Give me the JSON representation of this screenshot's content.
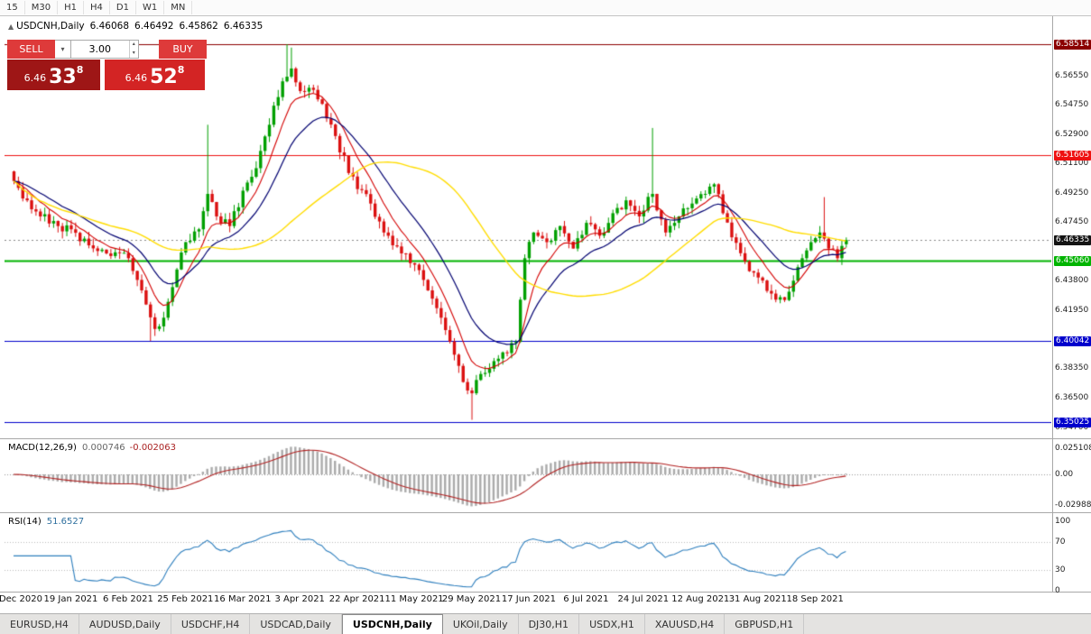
{
  "toolbar": {
    "timeframes": [
      "15",
      "M30",
      "H1",
      "H4",
      "D1",
      "W1",
      "MN"
    ]
  },
  "chart_header": {
    "collapse_icon": "▲",
    "symbol": "USDCNH,Daily",
    "open": "6.46068",
    "high": "6.46492",
    "low": "6.45862",
    "close": "6.46335"
  },
  "trade_panel": {
    "sell_label": "SELL",
    "buy_label": "BUY",
    "volume": "3.00",
    "sell_price": {
      "small": "6.46",
      "big": "33",
      "sup": "8"
    },
    "buy_price": {
      "small": "6.46",
      "big": "52",
      "sup": "8"
    }
  },
  "price_axis": {
    "ticks": [
      "6.56550",
      "6.54750",
      "6.52900",
      "6.51100",
      "6.49250",
      "6.47450",
      "6.43800",
      "6.41950",
      "6.38350",
      "6.36500",
      "6.34700"
    ]
  },
  "levels": [
    {
      "label": "6.58514",
      "value": 6.58514,
      "color": "#8B0000",
      "line_width": 1
    },
    {
      "label": "6.51605",
      "value": 6.51605,
      "color": "#EE1111",
      "line_width": 1
    },
    {
      "label": "6.45060",
      "value": 6.4506,
      "color": "#00B400",
      "line_width": 2
    },
    {
      "label": "6.40042",
      "value": 6.40042,
      "color": "#0000CC",
      "line_width": 1
    },
    {
      "label": "6.35025",
      "value": 6.35025,
      "color": "#0000CC",
      "line_width": 1
    }
  ],
  "bid": {
    "label": "6.46335",
    "value": 6.46335,
    "bg": "#141414"
  },
  "macd_panel": {
    "title": "MACD(12,26,9)",
    "value1": "0.000746",
    "value2": "-0.002063",
    "axis": [
      "0.025108",
      "0.00",
      "-0.029885"
    ]
  },
  "rsi_panel": {
    "title": "RSI(14)",
    "value": "51.6527",
    "axis": [
      "100",
      "70",
      "30",
      "0"
    ],
    "levels": [
      70,
      30
    ]
  },
  "time_axis": {
    "labels": [
      "31 Dec 2020",
      "19 Jan 2021",
      "6 Feb 2021",
      "25 Feb 2021",
      "16 Mar 2021",
      "3 Apr 2021",
      "22 Apr 2021",
      "11 May 2021",
      "29 May 2021",
      "17 Jun 2021",
      "6 Jul 2021",
      "24 Jul 2021",
      "12 Aug 2021",
      "31 Aug 2021",
      "18 Sep 2021"
    ]
  },
  "tabs": {
    "items": [
      {
        "label": "EURUSD,H4",
        "active": false
      },
      {
        "label": "AUDUSD,Daily",
        "active": false
      },
      {
        "label": "USDCHF,H4",
        "active": false
      },
      {
        "label": "USDCAD,Daily",
        "active": false
      },
      {
        "label": "USDCNH,Daily",
        "active": true
      },
      {
        "label": "UKOil,Daily",
        "active": false
      },
      {
        "label": "DJ30,H1",
        "active": false
      },
      {
        "label": "USDX,H1",
        "active": false
      },
      {
        "label": "XAUUSD,H4",
        "active": false
      },
      {
        "label": "GBPUSD,H1",
        "active": false
      }
    ]
  },
  "chart_data": {
    "type": "candlestick",
    "symbol": "USDCNH",
    "timeframe": "Daily",
    "title": "USDCNH,Daily",
    "n": 190,
    "y_min": 6.34,
    "y_max": 6.6025,
    "x_labels": [
      "31 Dec 2020",
      "19 Jan 2021",
      "6 Feb 2021",
      "25 Feb 2021",
      "16 Mar 2021",
      "3 Apr 2021",
      "22 Apr 2021",
      "11 May 2021",
      "29 May 2021",
      "17 Jun 2021",
      "6 Jul 2021",
      "24 Jul 2021",
      "12 Aug 2021",
      "31 Aug 2021",
      "18 Sep 2021"
    ],
    "waypoints": [
      [
        0,
        6.5
      ],
      [
        3,
        6.488
      ],
      [
        6,
        6.478
      ],
      [
        10,
        6.472
      ],
      [
        13,
        6.47
      ],
      [
        17,
        6.46
      ],
      [
        21,
        6.455
      ],
      [
        26,
        6.452
      ],
      [
        29,
        6.432
      ],
      [
        32,
        6.408
      ],
      [
        34,
        6.415
      ],
      [
        37,
        6.445
      ],
      [
        39,
        6.462
      ],
      [
        42,
        6.47
      ],
      [
        44,
        6.492
      ],
      [
        46,
        6.478
      ],
      [
        49,
        6.472
      ],
      [
        52,
        6.494
      ],
      [
        55,
        6.508
      ],
      [
        58,
        6.535
      ],
      [
        61,
        6.562
      ],
      [
        63,
        6.57
      ],
      [
        65,
        6.556
      ],
      [
        67,
        6.558
      ],
      [
        70,
        6.548
      ],
      [
        73,
        6.528
      ],
      [
        76,
        6.505
      ],
      [
        78,
        6.495
      ],
      [
        81,
        6.486
      ],
      [
        84,
        6.468
      ],
      [
        88,
        6.455
      ],
      [
        91,
        6.448
      ],
      [
        94,
        6.432
      ],
      [
        97,
        6.415
      ],
      [
        100,
        6.392
      ],
      [
        102,
        6.375
      ],
      [
        104,
        6.368
      ],
      [
        106,
        6.38
      ],
      [
        109,
        6.388
      ],
      [
        112,
        6.393
      ],
      [
        114,
        6.4
      ],
      [
        116,
        6.452
      ],
      [
        118,
        6.468
      ],
      [
        121,
        6.462
      ],
      [
        124,
        6.472
      ],
      [
        127,
        6.458
      ],
      [
        130,
        6.474
      ],
      [
        133,
        6.466
      ],
      [
        136,
        6.48
      ],
      [
        139,
        6.488
      ],
      [
        142,
        6.478
      ],
      [
        145,
        6.492
      ],
      [
        148,
        6.468
      ],
      [
        151,
        6.478
      ],
      [
        154,
        6.486
      ],
      [
        157,
        6.492
      ],
      [
        159,
        6.498
      ],
      [
        161,
        6.48
      ],
      [
        163,
        6.465
      ],
      [
        166,
        6.45
      ],
      [
        169,
        6.44
      ],
      [
        172,
        6.43
      ],
      [
        175,
        6.426
      ],
      [
        177,
        6.438
      ],
      [
        179,
        6.452
      ],
      [
        181,
        6.462
      ],
      [
        183,
        6.468
      ],
      [
        185,
        6.458
      ],
      [
        187,
        6.452
      ],
      [
        189,
        6.46335
      ]
    ],
    "wicks": [
      {
        "i": 31,
        "low": 6.4005
      },
      {
        "i": 44,
        "high": 6.535
      },
      {
        "i": 62,
        "high": 6.5851
      },
      {
        "i": 63,
        "high": 6.583
      },
      {
        "i": 104,
        "low": 6.3515
      },
      {
        "i": 145,
        "high": 6.533
      },
      {
        "i": 184,
        "high": 6.49
      }
    ],
    "last": {
      "open": 6.46068,
      "high": 6.46492,
      "low": 6.45862,
      "close": 6.46335
    },
    "colors": {
      "up": "#00A000",
      "down": "#DB1010"
    },
    "ma": [
      {
        "type": "ema",
        "period": 8,
        "color": "#D40000",
        "width": 1.1
      },
      {
        "type": "ema",
        "period": 18,
        "color": "#000070",
        "width": 1.2
      },
      {
        "type": "sma",
        "period": 45,
        "color": "#FFDD00",
        "width": 1.4
      }
    ],
    "macd": {
      "fast": 12,
      "slow": 26,
      "signal": 9,
      "current": 0.000746,
      "current_signal": -0.002063,
      "axis_max": 0.025108,
      "axis_min": -0.029885
    },
    "rsi_period": 14,
    "rsi_current": 51.6527,
    "horizontal_levels": [
      6.58514,
      6.51605,
      6.4506,
      6.40042,
      6.35025
    ],
    "bid_line": 6.46335
  }
}
